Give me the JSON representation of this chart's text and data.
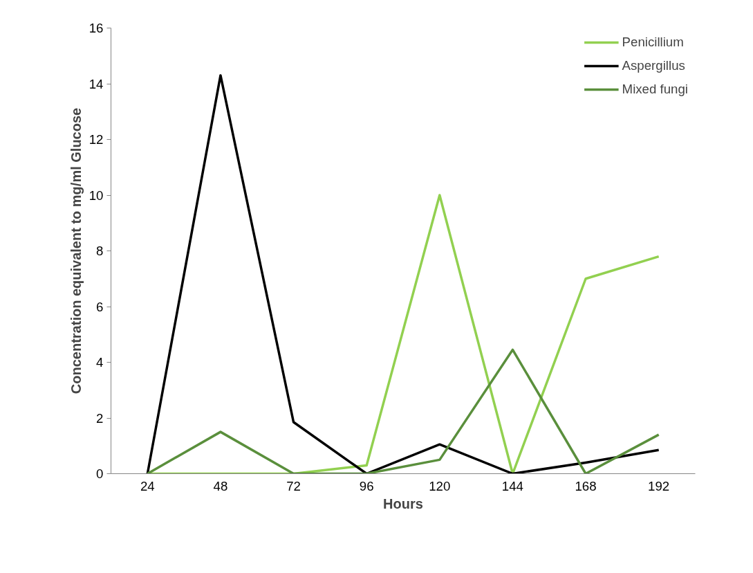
{
  "chart_data": {
    "type": "line",
    "xlabel": "Hours",
    "ylabel": "Concentration equivalent to mg/ml Glucose",
    "categories": [
      "24",
      "48",
      "72",
      "96",
      "120",
      "144",
      "168",
      "192"
    ],
    "series": [
      {
        "name": "Penicillium",
        "color": "#92d050",
        "values": [
          0,
          0,
          0,
          0.3,
          10.0,
          0,
          7.0,
          7.8
        ]
      },
      {
        "name": "Aspergillus",
        "color": "#000000",
        "values": [
          0,
          14.3,
          1.85,
          0,
          1.05,
          0,
          0.4,
          0.85
        ]
      },
      {
        "name": "Mixed fungi",
        "color": "#5a8f3c",
        "values": [
          0,
          1.5,
          0,
          0,
          0.5,
          4.45,
          0,
          1.4
        ]
      }
    ],
    "ylim": [
      0,
      16
    ],
    "yticks": [
      0,
      2,
      4,
      6,
      8,
      10,
      12,
      14,
      16
    ],
    "grid": false,
    "legend": "top right",
    "marker": "none",
    "line_style": "solid"
  }
}
